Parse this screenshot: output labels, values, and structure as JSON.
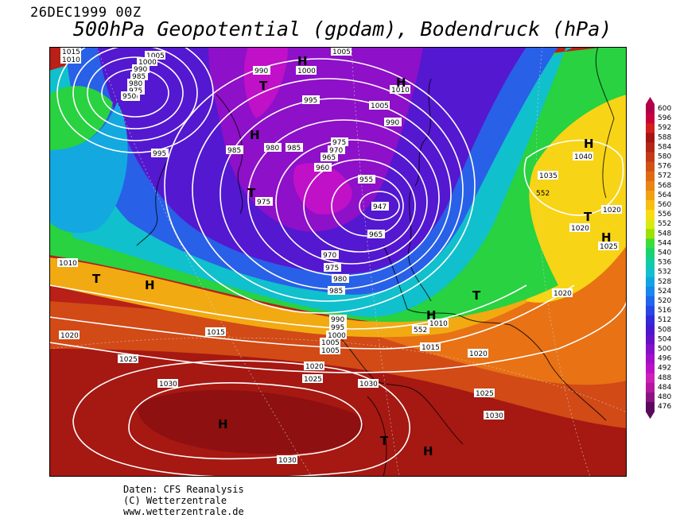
{
  "header": {
    "date": "26DEC1999 00Z",
    "title": "500hPa Geopotential (gpdam), Bodendruck (hPa)"
  },
  "legend": {
    "values": [
      "600",
      "596",
      "592",
      "588",
      "584",
      "580",
      "576",
      "572",
      "568",
      "564",
      "560",
      "556",
      "552",
      "548",
      "544",
      "540",
      "536",
      "532",
      "528",
      "524",
      "520",
      "516",
      "512",
      "508",
      "504",
      "500",
      "496",
      "492",
      "488",
      "484",
      "480",
      "476"
    ],
    "colors": [
      "#b0004a",
      "#c8003c",
      "#d21e1e",
      "#a41414",
      "#b32616",
      "#c23a16",
      "#d25216",
      "#e06a14",
      "#ea8412",
      "#f2a012",
      "#f8be10",
      "#fadc12",
      "#d8ea10",
      "#9ee000",
      "#3cdc3c",
      "#18d270",
      "#10cca4",
      "#10c0cc",
      "#10a4e4",
      "#1886ec",
      "#2066ec",
      "#2846e4",
      "#3428d8",
      "#4a18cc",
      "#6610c8",
      "#8410c8",
      "#a010c8",
      "#bc10c8",
      "#cc20b8",
      "#b418a0",
      "#8a1480",
      "#5a0a5c"
    ]
  },
  "map": {
    "pressure_labels": [
      "1015",
      "1010",
      "1005",
      "1000",
      "990",
      "985",
      "980",
      "975",
      "970",
      "960",
      "955",
      "950",
      "995",
      "1005",
      "990",
      "1000",
      "1010",
      "1005",
      "995",
      "985",
      "980",
      "985",
      "975",
      "970",
      "965",
      "960",
      "955",
      "947",
      "965",
      "975",
      "970",
      "975",
      "980",
      "985",
      "990",
      "995",
      "1000",
      "1005",
      "1010",
      "1015",
      "1020",
      "1010",
      "1005",
      "1020",
      "1025",
      "1030",
      "1020",
      "1025",
      "1030",
      "1025",
      "1030",
      "1030",
      "1035",
      "1040",
      "1020",
      "1020",
      "1025",
      "1020",
      "1015",
      "1020",
      "552",
      "552",
      "990",
      "975",
      "1010"
    ],
    "pressure_markers": [
      "H",
      "H",
      "H",
      "H",
      "T",
      "T",
      "H",
      "T",
      "T",
      "H",
      "T",
      "H",
      "T",
      "H",
      "H",
      "H",
      "T",
      "H"
    ]
  },
  "footer": {
    "source": "Daten: CFS Reanalysis",
    "copyright": "(C) Wetterzentrale",
    "url": "www.wetterzentrale.de"
  }
}
